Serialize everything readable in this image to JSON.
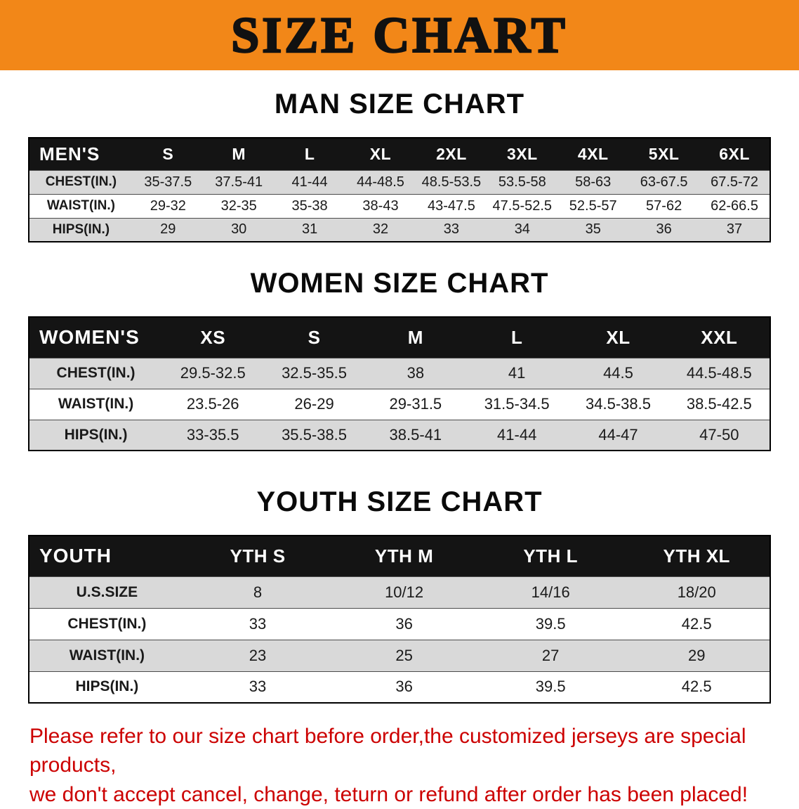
{
  "banner": {
    "title": "SIZE CHART",
    "bg_color": "#F28718",
    "text_color": "#111111"
  },
  "men": {
    "heading": "MAN SIZE CHART",
    "table": {
      "header": [
        "MEN'S",
        "S",
        "M",
        "L",
        "XL",
        "2XL",
        "3XL",
        "4XL",
        "5XL",
        "6XL"
      ],
      "rows": [
        [
          "CHEST(IN.)",
          "35-37.5",
          "37.5-41",
          "41-44",
          "44-48.5",
          "48.5-53.5",
          "53.5-58",
          "58-63",
          "63-67.5",
          "67.5-72"
        ],
        [
          "WAIST(IN.)",
          "29-32",
          "32-35",
          "35-38",
          "38-43",
          "43-47.5",
          "47.5-52.5",
          "52.5-57",
          "57-62",
          "62-66.5"
        ],
        [
          "HIPS(IN.)",
          "29",
          "30",
          "31",
          "32",
          "33",
          "34",
          "35",
          "36",
          "37"
        ]
      ]
    }
  },
  "women": {
    "heading": "WOMEN SIZE CHART",
    "table": {
      "header": [
        "WOMEN'S",
        "XS",
        "S",
        "M",
        "L",
        "XL",
        "XXL"
      ],
      "rows": [
        [
          "CHEST(IN.)",
          "29.5-32.5",
          "32.5-35.5",
          "38",
          "41",
          "44.5",
          "44.5-48.5"
        ],
        [
          "WAIST(IN.)",
          "23.5-26",
          "26-29",
          "29-31.5",
          "31.5-34.5",
          "34.5-38.5",
          "38.5-42.5"
        ],
        [
          "HIPS(IN.)",
          "33-35.5",
          "35.5-38.5",
          "38.5-41",
          "41-44",
          "44-47",
          "47-50"
        ]
      ]
    }
  },
  "youth": {
    "heading": "YOUTH SIZE CHART",
    "table": {
      "header": [
        "YOUTH",
        "YTH S",
        "YTH M",
        "YTH L",
        "YTH XL"
      ],
      "rows": [
        [
          "U.S.SIZE",
          "8",
          "10/12",
          "14/16",
          "18/20"
        ],
        [
          "CHEST(IN.)",
          "33",
          "36",
          "39.5",
          "42.5"
        ],
        [
          "WAIST(IN.)",
          "23",
          "25",
          "27",
          "29"
        ],
        [
          "HIPS(IN.)",
          "33",
          "36",
          "39.5",
          "42.5"
        ]
      ]
    }
  },
  "disclaimer": {
    "color": "#CC0000",
    "lines": [
      "Please refer to our size chart before order,the customized jerseys are special products,",
      "we don't accept cancel, change, teturn or refund after order has been placed!"
    ]
  }
}
